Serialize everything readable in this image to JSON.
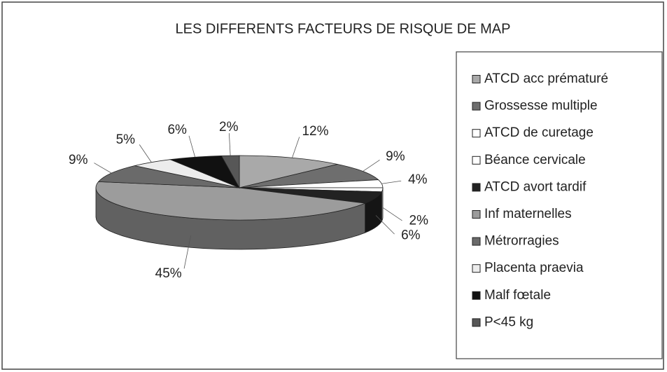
{
  "chart_data": {
    "type": "pie",
    "title": "LES DIFFERENTS FACTEURS DE RISQUE DE MAP",
    "categories": [
      "ATCD acc prématuré",
      "Grossesse multiple",
      "ATCD de curetage",
      "Béance cervicale",
      "ATCD avort tardif",
      "Inf maternelles",
      "Métrorragies",
      "Placenta praevia",
      "Malf fœtale",
      "P<45 kg"
    ],
    "values": [
      12,
      9,
      4,
      2,
      6,
      45,
      9,
      5,
      6,
      2
    ],
    "value_labels": [
      "12%",
      "9%",
      "4%",
      "2%",
      "6%",
      "45%",
      "9%",
      "5%",
      "6%",
      "2%"
    ],
    "colors": [
      "#a9a9a9",
      "#6e6e6e",
      "#ffffff",
      "#ffffff",
      "#222222",
      "#9c9c9c",
      "#6a6a6a",
      "#ececec",
      "#111111",
      "#575757"
    ],
    "legend": "right"
  }
}
